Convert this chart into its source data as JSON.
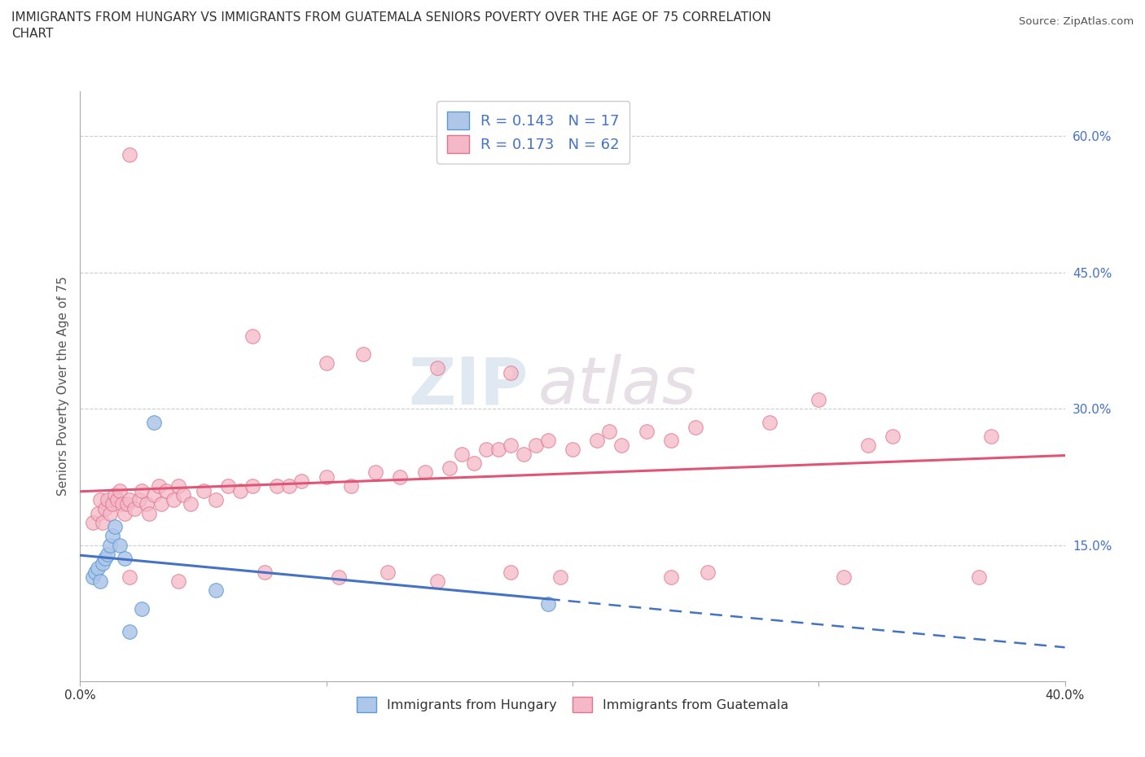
{
  "title": "IMMIGRANTS FROM HUNGARY VS IMMIGRANTS FROM GUATEMALA SENIORS POVERTY OVER THE AGE OF 75 CORRELATION\nCHART",
  "source_text": "Source: ZipAtlas.com",
  "ylabel": "Seniors Poverty Over the Age of 75",
  "xlim": [
    0.0,
    0.4
  ],
  "ylim": [
    0.0,
    0.65
  ],
  "xticks": [
    0.0,
    0.1,
    0.2,
    0.3,
    0.4
  ],
  "xticklabels": [
    "0.0%",
    "",
    "",
    "",
    "40.0%"
  ],
  "yticks": [
    0.0,
    0.15,
    0.3,
    0.45,
    0.6
  ],
  "yticklabels": [
    "",
    "15.0%",
    "30.0%",
    "45.0%",
    "60.0%"
  ],
  "hungary_color": "#aec6e8",
  "hungary_edge": "#5b9bd5",
  "guatemala_color": "#f4b8c8",
  "guatemala_edge": "#e0748a",
  "trend_hungary_color": "#4472c4",
  "trend_guatemala_color": "#e05575",
  "legend_R_hungary": "0.143",
  "legend_N_hungary": "17",
  "legend_R_guatemala": "0.173",
  "legend_N_guatemala": "62",
  "watermark_zip": "ZIP",
  "watermark_atlas": "atlas",
  "legend_label_hungary": "Immigrants from Hungary",
  "legend_label_guatemala": "Immigrants from Guatemala",
  "hungary_x": [
    0.005,
    0.006,
    0.007,
    0.008,
    0.009,
    0.01,
    0.011,
    0.012,
    0.013,
    0.014,
    0.016,
    0.018,
    0.02,
    0.025,
    0.03,
    0.055,
    0.19
  ],
  "hungary_y": [
    0.115,
    0.12,
    0.125,
    0.11,
    0.13,
    0.135,
    0.14,
    0.15,
    0.16,
    0.17,
    0.15,
    0.135,
    0.055,
    0.08,
    0.285,
    0.1,
    0.085
  ],
  "guatemala_x": [
    0.005,
    0.007,
    0.008,
    0.009,
    0.01,
    0.011,
    0.012,
    0.013,
    0.014,
    0.015,
    0.016,
    0.017,
    0.018,
    0.019,
    0.02,
    0.022,
    0.024,
    0.025,
    0.027,
    0.028,
    0.03,
    0.032,
    0.033,
    0.035,
    0.038,
    0.04,
    0.042,
    0.045,
    0.05,
    0.055,
    0.06,
    0.065,
    0.07,
    0.08,
    0.085,
    0.09,
    0.1,
    0.11,
    0.12,
    0.13,
    0.14,
    0.15,
    0.155,
    0.16,
    0.165,
    0.17,
    0.175,
    0.18,
    0.185,
    0.19,
    0.2,
    0.21,
    0.215,
    0.22,
    0.23,
    0.24,
    0.25,
    0.28,
    0.32,
    0.33,
    0.37,
    0.02
  ],
  "guatemala_y": [
    0.175,
    0.185,
    0.2,
    0.175,
    0.19,
    0.2,
    0.185,
    0.195,
    0.205,
    0.2,
    0.21,
    0.195,
    0.185,
    0.195,
    0.2,
    0.19,
    0.2,
    0.21,
    0.195,
    0.185,
    0.205,
    0.215,
    0.195,
    0.21,
    0.2,
    0.215,
    0.205,
    0.195,
    0.21,
    0.2,
    0.215,
    0.21,
    0.215,
    0.215,
    0.215,
    0.22,
    0.225,
    0.215,
    0.23,
    0.225,
    0.23,
    0.235,
    0.25,
    0.24,
    0.255,
    0.255,
    0.26,
    0.25,
    0.26,
    0.265,
    0.255,
    0.265,
    0.275,
    0.26,
    0.275,
    0.265,
    0.28,
    0.285,
    0.26,
    0.27,
    0.27,
    0.58
  ],
  "guatemala_outlier_x": [
    0.02,
    0.04,
    0.075,
    0.105,
    0.125,
    0.145,
    0.175,
    0.195,
    0.24,
    0.255,
    0.31,
    0.365
  ],
  "guatemala_outlier_y": [
    0.115,
    0.11,
    0.12,
    0.115,
    0.12,
    0.11,
    0.12,
    0.115,
    0.115,
    0.12,
    0.115,
    0.115
  ],
  "guatemala_high_x": [
    0.07,
    0.1,
    0.115,
    0.145,
    0.175,
    0.3
  ],
  "guatemala_high_y": [
    0.38,
    0.35,
    0.36,
    0.345,
    0.34,
    0.31
  ]
}
